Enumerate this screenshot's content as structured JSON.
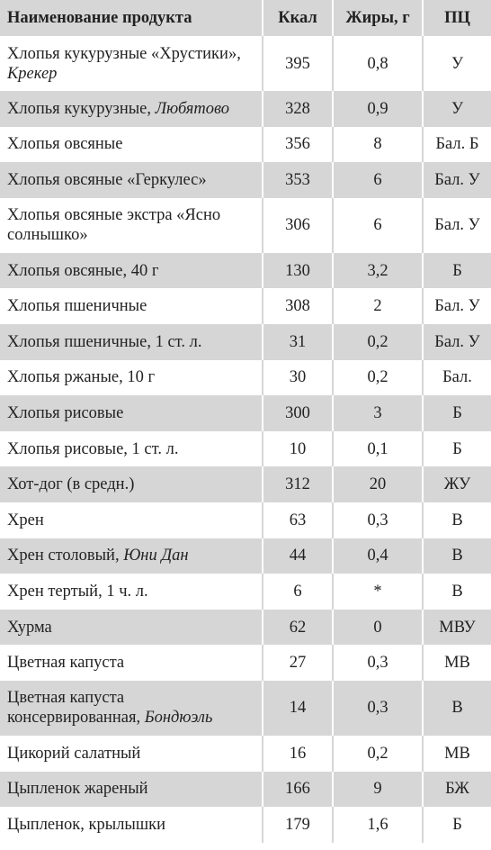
{
  "table": {
    "header": [
      "Наименование продукта",
      "Ккал",
      "Жиры, г",
      "ПЦ"
    ],
    "rows": [
      {
        "name": "Хлопья кукурузные «Хрустики»,",
        "brand": "Крекер",
        "kcal": 395,
        "fat": "0,8",
        "pc": "У"
      },
      {
        "name": "Хлопья кукурузные,",
        "brand": "Любятово",
        "kcal": 328,
        "fat": "0,9",
        "pc": "У"
      },
      {
        "name": "Хлопья овсяные",
        "kcal": 356,
        "fat": "8",
        "pc": "Бал. Б"
      },
      {
        "name": "Хлопья овсяные «Геркулес»",
        "kcal": 353,
        "fat": "6",
        "pc": "Бал. У"
      },
      {
        "name": "Хлопья овсяные экстра «Ясно солнышко»",
        "kcal": 306,
        "fat": "6",
        "pc": "Бал. У"
      },
      {
        "name": "Хлопья овсяные, 40 г",
        "kcal": 130,
        "fat": "3,2",
        "pc": "Б"
      },
      {
        "name": "Хлопья пшеничные",
        "kcal": 308,
        "fat": "2",
        "pc": "Бал. У"
      },
      {
        "name": "Хлопья пшеничные, 1 ст. л.",
        "kcal": 31,
        "fat": "0,2",
        "pc": "Бал. У"
      },
      {
        "name": "Хлопья ржаные, 10 г",
        "kcal": 30,
        "fat": "0,2",
        "pc": "Бал."
      },
      {
        "name": "Хлопья рисовые",
        "kcal": 300,
        "fat": "3",
        "pc": "Б"
      },
      {
        "name": "Хлопья рисовые, 1 ст. л.",
        "kcal": 10,
        "fat": "0,1",
        "pc": "Б"
      },
      {
        "name": "Хот-дог (в средн.)",
        "kcal": 312,
        "fat": "20",
        "pc": "ЖУ"
      },
      {
        "name": "Хрен",
        "kcal": 63,
        "fat": "0,3",
        "pc": "В"
      },
      {
        "name": "Хрен столовый,",
        "brand": "Юни Дан",
        "kcal": 44,
        "fat": "0,4",
        "pc": "В"
      },
      {
        "name": "Хрен тертый, 1 ч. л.",
        "kcal": 6,
        "fat": "*",
        "pc": "В"
      },
      {
        "name": "Хурма",
        "kcal": 62,
        "fat": "0",
        "pc": "МВУ"
      },
      {
        "name": "Цветная капуста",
        "kcal": 27,
        "fat": "0,3",
        "pc": "МВ"
      },
      {
        "name": "Цветная капуста консервированная,",
        "brand": "Бондюэль",
        "kcal": 14,
        "fat": "0,3",
        "pc": "В"
      },
      {
        "name": "Цикорий салатный",
        "kcal": 16,
        "fat": "0,2",
        "pc": "МВ"
      },
      {
        "name": "Цыпленок жареный",
        "kcal": 166,
        "fat": "9",
        "pc": "БЖ"
      },
      {
        "name": "Цыпленок, крылышки",
        "kcal": 179,
        "fat": "1,6",
        "pc": "Б"
      }
    ]
  }
}
